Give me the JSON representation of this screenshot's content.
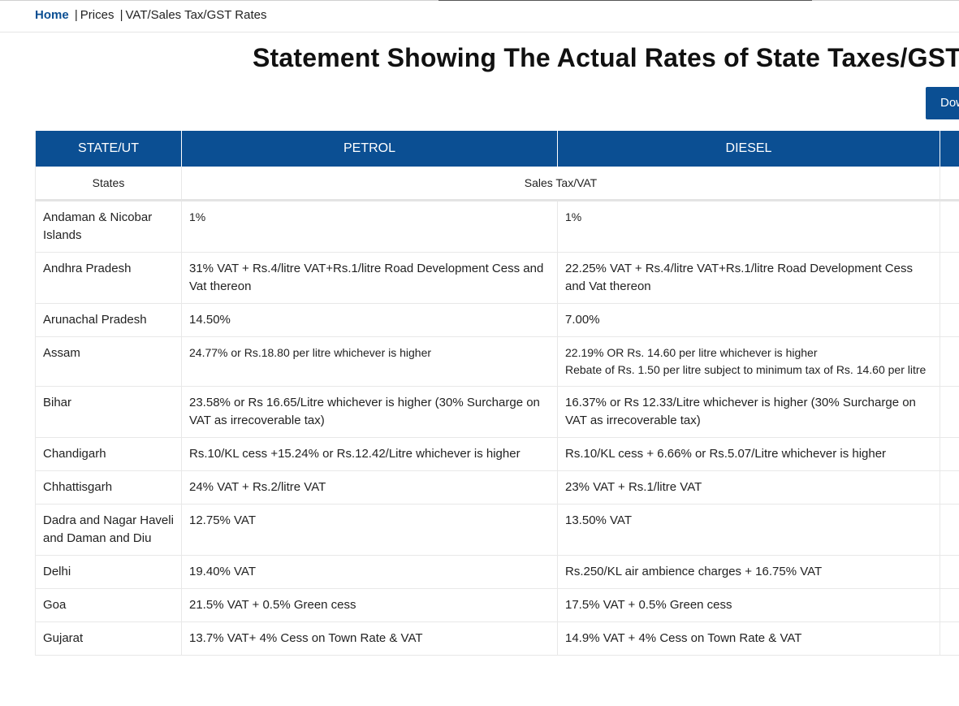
{
  "breadcrumb": {
    "home": "Home",
    "separator": "|",
    "prices": "Prices",
    "current": "VAT/Sales Tax/GST Rates"
  },
  "page_title": "Statement Showing The Actual Rates of State Taxes/GST",
  "download_button": "Download",
  "table": {
    "headers": [
      "STATE/UT",
      "PETROL",
      "DIESEL"
    ],
    "subheaders": {
      "state": "States",
      "tax": "Sales Tax/VAT"
    },
    "rows": [
      {
        "state": "Andaman & Nicobar Islands",
        "petrol": "1%",
        "diesel": "1%"
      },
      {
        "state": "Andhra Pradesh",
        "petrol": "31% VAT + Rs.4/litre VAT+Rs.1/litre Road Development Cess and Vat thereon",
        "diesel": "22.25% VAT + Rs.4/litre VAT+Rs.1/litre Road Development Cess and Vat thereon"
      },
      {
        "state": "Arunachal Pradesh",
        "petrol": "14.50%",
        "diesel": "7.00%"
      },
      {
        "state": "Assam",
        "petrol": "24.77% or Rs.18.80 per litre whichever is higher",
        "diesel": "22.19% OR Rs. 14.60 per litre whichever is higher",
        "diesel_note": "Rebate of Rs. 1.50 per litre subject to minimum tax of Rs. 14.60 per litre"
      },
      {
        "state": "Bihar",
        "petrol": "23.58% or Rs 16.65/Litre whichever is higher (30% Surcharge on VAT as irrecoverable tax)",
        "diesel": "16.37% or Rs 12.33/Litre whichever is higher (30% Surcharge on VAT as irrecoverable tax)"
      },
      {
        "state": "Chandigarh",
        "petrol": "Rs.10/KL cess +15.24% or Rs.12.42/Litre whichever is higher",
        "diesel": "Rs.10/KL cess + 6.66% or Rs.5.07/Litre whichever is higher"
      },
      {
        "state": "Chhattisgarh",
        "petrol": "24% VAT + Rs.2/litre VAT",
        "diesel": "23% VAT + Rs.1/litre VAT"
      },
      {
        "state": "Dadra and Nagar Haveli and Daman and Diu",
        "petrol": "12.75% VAT",
        "diesel": "13.50% VAT"
      },
      {
        "state": "Delhi",
        "petrol": "19.40% VAT",
        "diesel": "Rs.250/KL air ambience charges + 16.75% VAT"
      },
      {
        "state": "Goa",
        "petrol": "21.5% VAT + 0.5% Green cess",
        "diesel": "17.5% VAT + 0.5% Green cess"
      },
      {
        "state": "Gujarat",
        "petrol": "13.7% VAT+ 4% Cess on Town Rate & VAT",
        "diesel": "14.9% VAT + 4% Cess on Town Rate & VAT"
      }
    ]
  }
}
